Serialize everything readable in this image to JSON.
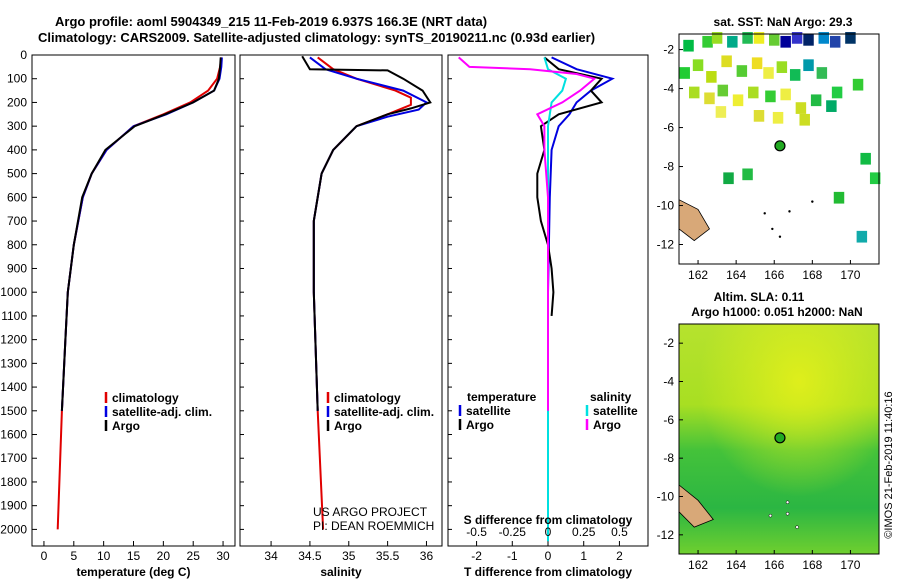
{
  "header": {
    "line1": "Argo profile: aoml 5904349_215 11-Feb-2019 6.937S 166.3E (NRT data)",
    "line2": "Climatology: CARS2009. Satellite-adjusted climatology: synTS_20190211.nc (0.93d earlier)"
  },
  "credit": {
    "project": "US ARGO PROJECT",
    "pi": "PI: DEAN ROEMMICH",
    "stamp": "©IMOS 21-Feb-2019 11:40:16"
  },
  "colors": {
    "climatology": "#e00000",
    "satellite": "#0000e0",
    "argo": "#000000",
    "sal_sat": "#00e0e0",
    "sal_argo": "#ff00ff"
  },
  "chart_data": [
    {
      "type": "line",
      "id": "temperature",
      "xlabel": "temperature (deg C)",
      "ylabel": "",
      "xlim": [
        -2,
        32
      ],
      "ylim": [
        2070,
        0
      ],
      "xticks": [
        0,
        5,
        10,
        15,
        20,
        25,
        30
      ],
      "yticks": [
        0,
        100,
        200,
        300,
        400,
        500,
        600,
        700,
        800,
        900,
        1000,
        1100,
        1200,
        1300,
        1400,
        1500,
        1600,
        1700,
        1800,
        1900,
        2000
      ],
      "legend": [
        "climatology",
        "satellite-adj. clim.",
        "Argo"
      ],
      "series": [
        {
          "name": "climatology",
          "color": "#e00000",
          "depth": [
            10,
            50,
            100,
            150,
            200,
            250,
            300,
            400,
            500,
            600,
            800,
            1000,
            1200,
            1500,
            2000
          ],
          "values": [
            29.7,
            29.5,
            29,
            27.5,
            24.5,
            20,
            15,
            10.5,
            8,
            6.5,
            5,
            4,
            3.6,
            3,
            2.3
          ]
        },
        {
          "name": "satellite-adj. clim.",
          "color": "#0000e0",
          "depth": [
            10,
            50,
            100,
            150,
            200,
            250,
            300,
            400,
            500,
            600,
            800,
            1000,
            1200,
            1500
          ],
          "values": [
            29.8,
            29.7,
            29.4,
            28.5,
            25,
            20.5,
            15,
            10.5,
            8,
            6.5,
            5,
            4,
            3.6,
            3
          ]
        },
        {
          "name": "Argo",
          "color": "#000000",
          "depth": [
            10,
            50,
            100,
            150,
            200,
            250,
            300,
            400,
            500,
            600,
            800,
            1000,
            1200,
            1500
          ],
          "values": [
            29.6,
            29.5,
            29.3,
            28.5,
            25,
            20.3,
            15.2,
            10.3,
            8,
            6.4,
            5,
            4,
            3.6,
            3
          ]
        }
      ]
    },
    {
      "type": "line",
      "id": "salinity",
      "xlabel": "salinity",
      "ylabel": "",
      "xlim": [
        33.6,
        36.2
      ],
      "ylim": [
        2070,
        0
      ],
      "xticks": [
        34,
        34.5,
        35,
        35.5,
        36
      ],
      "legend": [
        "climatology",
        "satellite-adj. clim.",
        "Argo"
      ],
      "series": [
        {
          "name": "climatology",
          "color": "#e00000",
          "depth": [
            10,
            60,
            100,
            150,
            180,
            210,
            250,
            300,
            400,
            500,
            700,
            1000,
            1500,
            2000
          ],
          "values": [
            34.6,
            34.8,
            35.1,
            35.6,
            35.8,
            35.8,
            35.5,
            35.1,
            34.8,
            34.65,
            34.55,
            34.55,
            34.6,
            34.67
          ]
        },
        {
          "name": "satellite-adj. clim.",
          "color": "#0000e0",
          "depth": [
            10,
            60,
            100,
            150,
            200,
            230,
            260,
            300,
            400,
            500,
            700,
            1000,
            1500
          ],
          "values": [
            34.5,
            34.7,
            35.1,
            35.7,
            36,
            35.9,
            35.5,
            35.1,
            34.8,
            34.65,
            34.55,
            34.55,
            34.6
          ]
        },
        {
          "name": "Argo",
          "color": "#000000",
          "depth": [
            5,
            60,
            65,
            100,
            150,
            200,
            225,
            250,
            300,
            400,
            500,
            700,
            1000,
            1500
          ],
          "values": [
            34.4,
            34.5,
            35.5,
            35.7,
            35.95,
            36.05,
            35.8,
            35.5,
            35.1,
            34.8,
            34.65,
            34.55,
            34.55,
            34.6
          ]
        }
      ]
    },
    {
      "type": "line",
      "id": "differences",
      "xlabel": "T difference from climatology",
      "title": "S difference from climatology",
      "xlim": [
        -2.8,
        2.8
      ],
      "ylim": [
        2070,
        0
      ],
      "xticks_T": [
        -2,
        -1,
        0,
        1,
        2
      ],
      "xticks_S": [
        -0.5,
        -0.25,
        0,
        0.25,
        0.5
      ],
      "legend_left": [
        "temperature",
        "satellite",
        "Argo"
      ],
      "legend_right": [
        "salinity",
        "satellite",
        "Argo"
      ],
      "series": [
        {
          "name": "T satellite",
          "color": "#0000e0",
          "depth": [
            10,
            60,
            100,
            150,
            200,
            250,
            300,
            400,
            600,
            1000,
            1500,
            2000
          ],
          "values": [
            0.1,
            0.8,
            1.8,
            1.2,
            0.8,
            0.6,
            0.3,
            0.1,
            0.05,
            0,
            0,
            0
          ]
        },
        {
          "name": "T Argo",
          "color": "#000000",
          "depth": [
            10,
            60,
            100,
            150,
            200,
            250,
            300,
            400,
            500,
            600,
            700,
            800,
            900,
            1000,
            1100
          ],
          "values": [
            -0.1,
            0.3,
            1.5,
            1.2,
            1.5,
            0.3,
            -0.2,
            -0.1,
            -0.3,
            -0.3,
            -0.2,
            0,
            0.1,
            0.15,
            0.1
          ]
        },
        {
          "name": "S satellite",
          "color": "#00e0e0",
          "depth": [
            10,
            60,
            100,
            150,
            200,
            300,
            400,
            600,
            1000,
            1500,
            2050
          ],
          "values": [
            -0.1,
            0,
            0.5,
            0.4,
            0.1,
            0,
            0,
            0,
            0,
            0,
            0
          ]
        },
        {
          "name": "S Argo",
          "color": "#ff00ff",
          "depth": [
            10,
            50,
            60,
            80,
            100,
            150,
            200,
            250,
            300,
            400,
            600,
            1000,
            1500
          ],
          "values": [
            -2.5,
            -2.2,
            -0.5,
            0.8,
            1.3,
            0.9,
            0.4,
            -0.3,
            -0.1,
            -0.1,
            0,
            0,
            0
          ]
        }
      ]
    },
    {
      "type": "heatmap",
      "id": "sst-map",
      "title": "sat. SST: NaN Argo: 29.3",
      "xlim": [
        161,
        171.5
      ],
      "ylim": [
        -13,
        -1.2
      ],
      "xticks": [
        162,
        164,
        166,
        168,
        170
      ],
      "yticks": [
        -2,
        -4,
        -6,
        -8,
        -10,
        -12
      ],
      "argo_position": [
        166.3,
        -6.937
      ]
    },
    {
      "type": "heatmap",
      "id": "sla-map",
      "title1": "Altim. SLA: 0.11",
      "title2": "Argo h1000: 0.051 h2000: NaN",
      "xlim": [
        161,
        171.5
      ],
      "ylim": [
        -13,
        -1
      ],
      "xticks": [
        162,
        164,
        166,
        168,
        170
      ],
      "yticks": [
        -2,
        -4,
        -6,
        -8,
        -10,
        -12
      ],
      "argo_position": [
        166.3,
        -6.937
      ]
    }
  ]
}
